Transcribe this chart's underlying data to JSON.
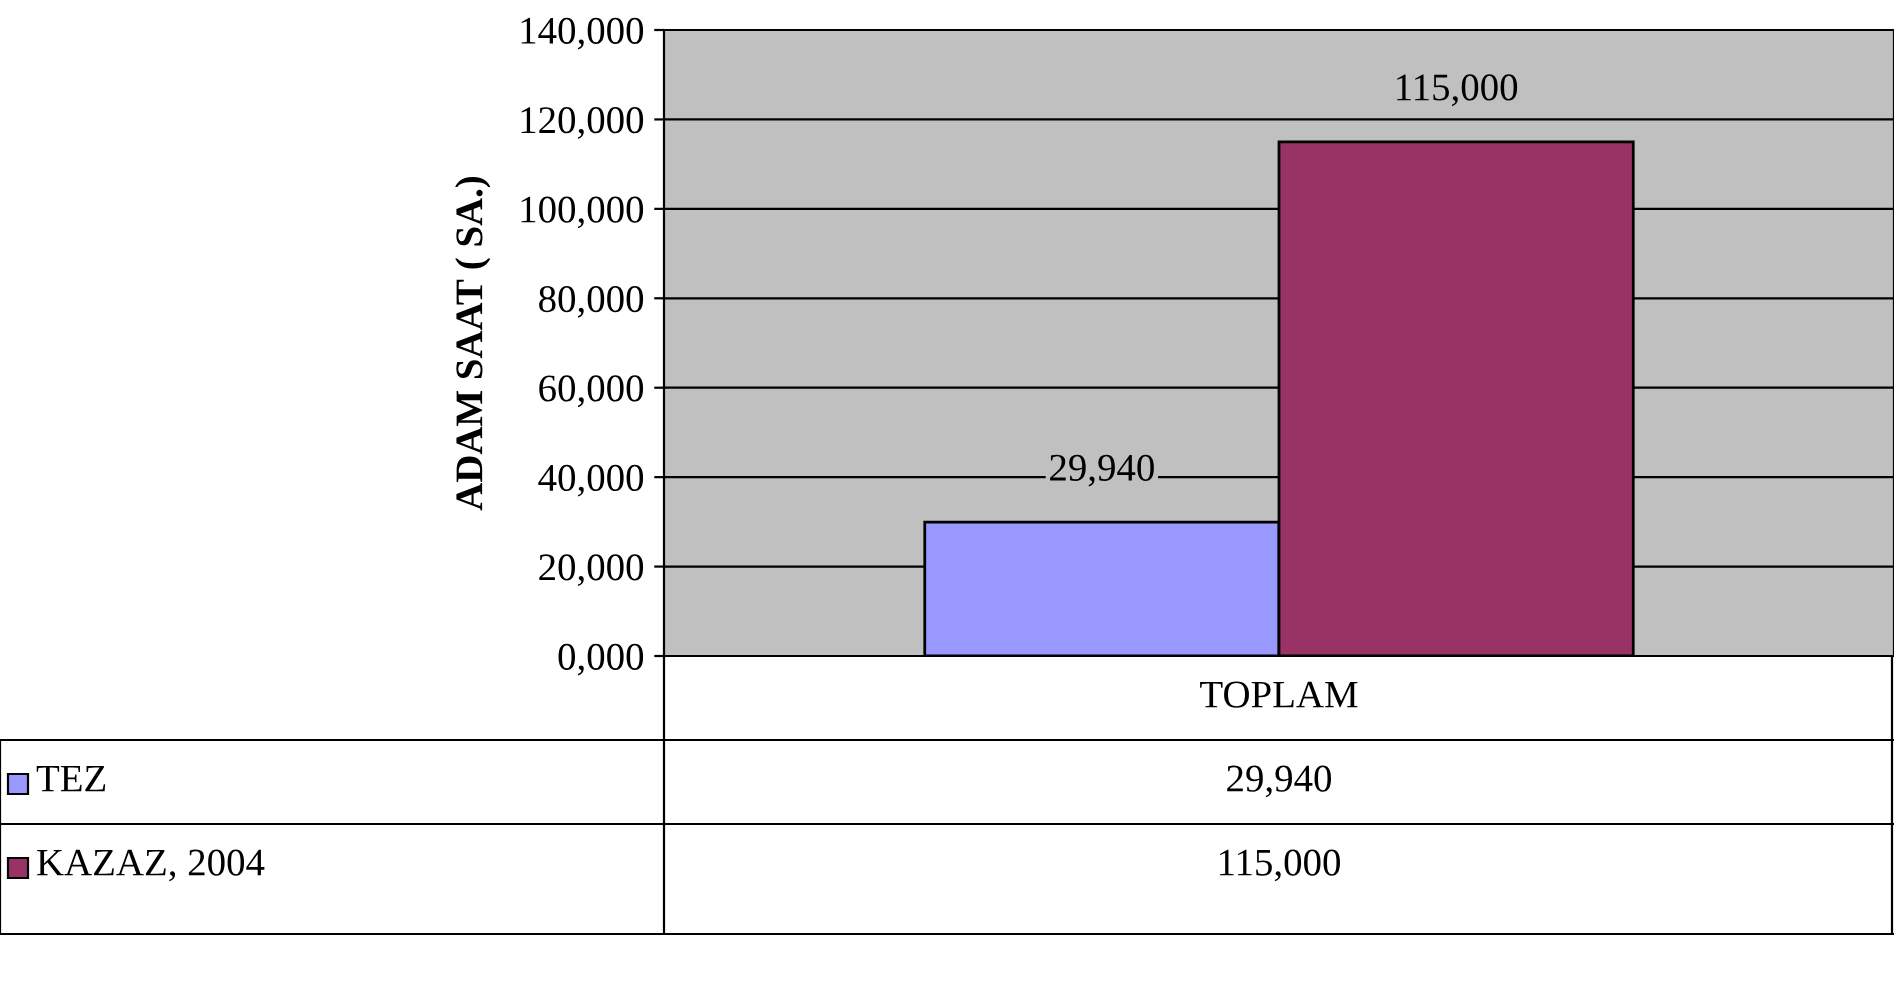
{
  "chart_data": {
    "type": "bar",
    "ylabel": "ADAM SAAT ( SA.)",
    "categories": [
      "TOPLAM"
    ],
    "series": [
      {
        "name": "TEZ",
        "color": "#9999ff",
        "values": [
          29940
        ],
        "value_labels": [
          "29,940"
        ]
      },
      {
        "name": "KAZAZ, 2004",
        "color": "#993366",
        "values": [
          115000
        ],
        "value_labels": [
          "115,000"
        ]
      }
    ],
    "ylim": [
      0,
      140000
    ],
    "yticks": [
      {
        "value": 0,
        "label": "0,000"
      },
      {
        "value": 20000,
        "label": "20,000"
      },
      {
        "value": 40000,
        "label": "40,000"
      },
      {
        "value": 60000,
        "label": "60,000"
      },
      {
        "value": 80000,
        "label": "80,000"
      },
      {
        "value": 100000,
        "label": "100,000"
      },
      {
        "value": 120000,
        "label": "120,000"
      },
      {
        "value": 140000,
        "label": "140,000"
      }
    ],
    "grid": "y",
    "legend": "bottom"
  }
}
